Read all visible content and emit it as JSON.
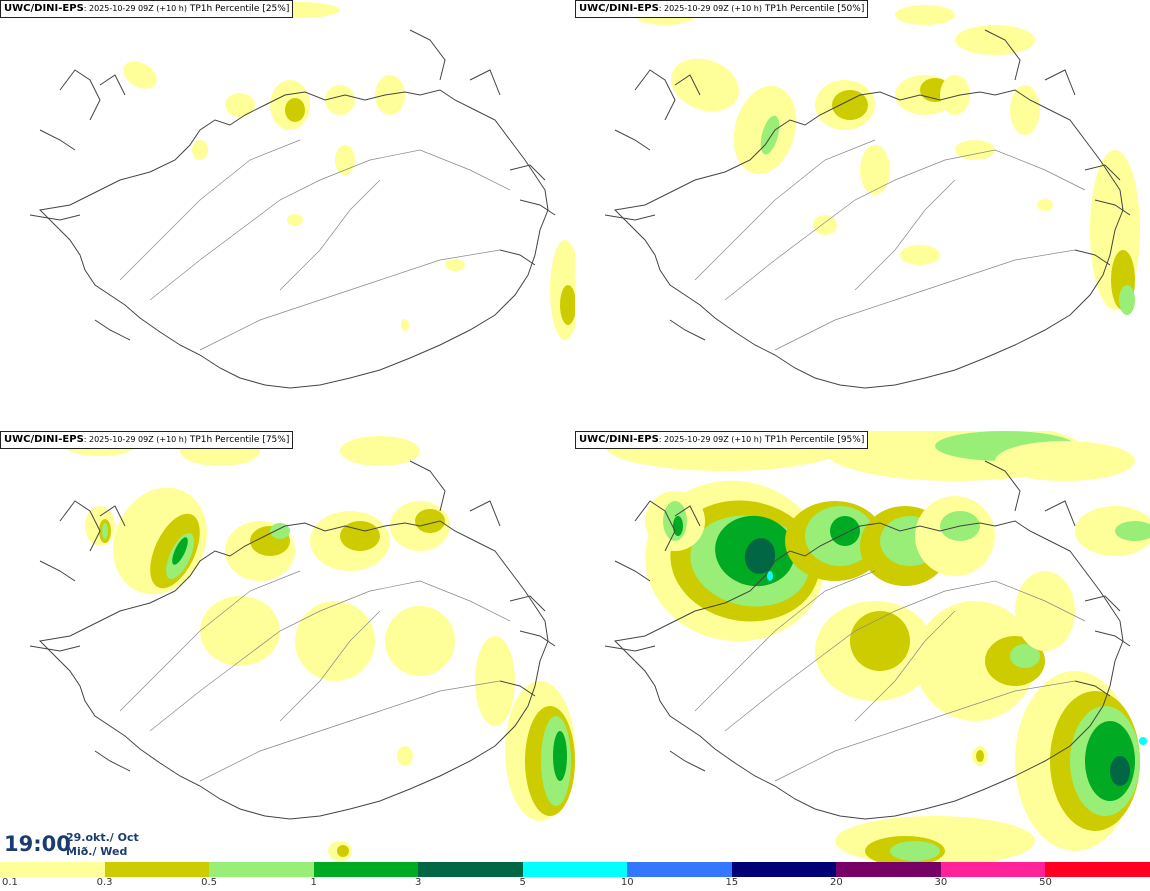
{
  "panels": [
    {
      "source": "UWC/DINI-EPS",
      "run": ": 2025-10-29 09Z (+10 h)",
      "field": " TP1h Percentile [25%]"
    },
    {
      "source": "UWC/DINI-EPS",
      "run": ": 2025-10-29 09Z (+10 h)",
      "field": " TP1h Percentile [50%]"
    },
    {
      "source": "UWC/DINI-EPS",
      "run": ": 2025-10-29 09Z (+10 h)",
      "field": " TP1h Percentile [75%]"
    },
    {
      "source": "UWC/DINI-EPS",
      "run": ": 2025-10-29 09Z (+10 h)",
      "field": " TP1h Percentile [95%]"
    }
  ],
  "time": {
    "clock": "19:00",
    "date_line1": "29.okt./ Oct",
    "date_line2": "Mið./ Wed"
  },
  "legend": {
    "colors": [
      "#ffff99",
      "#cccc00",
      "#99ee77",
      "#00aa22",
      "#006644",
      "#00ffff",
      "#3377ff",
      "#000077",
      "#770066",
      "#ff2299",
      "#ff0022"
    ],
    "labels": [
      "0.1",
      "0.3",
      "0.5",
      "1",
      "3",
      "5",
      "10",
      "15",
      "20",
      "30",
      "50"
    ]
  }
}
